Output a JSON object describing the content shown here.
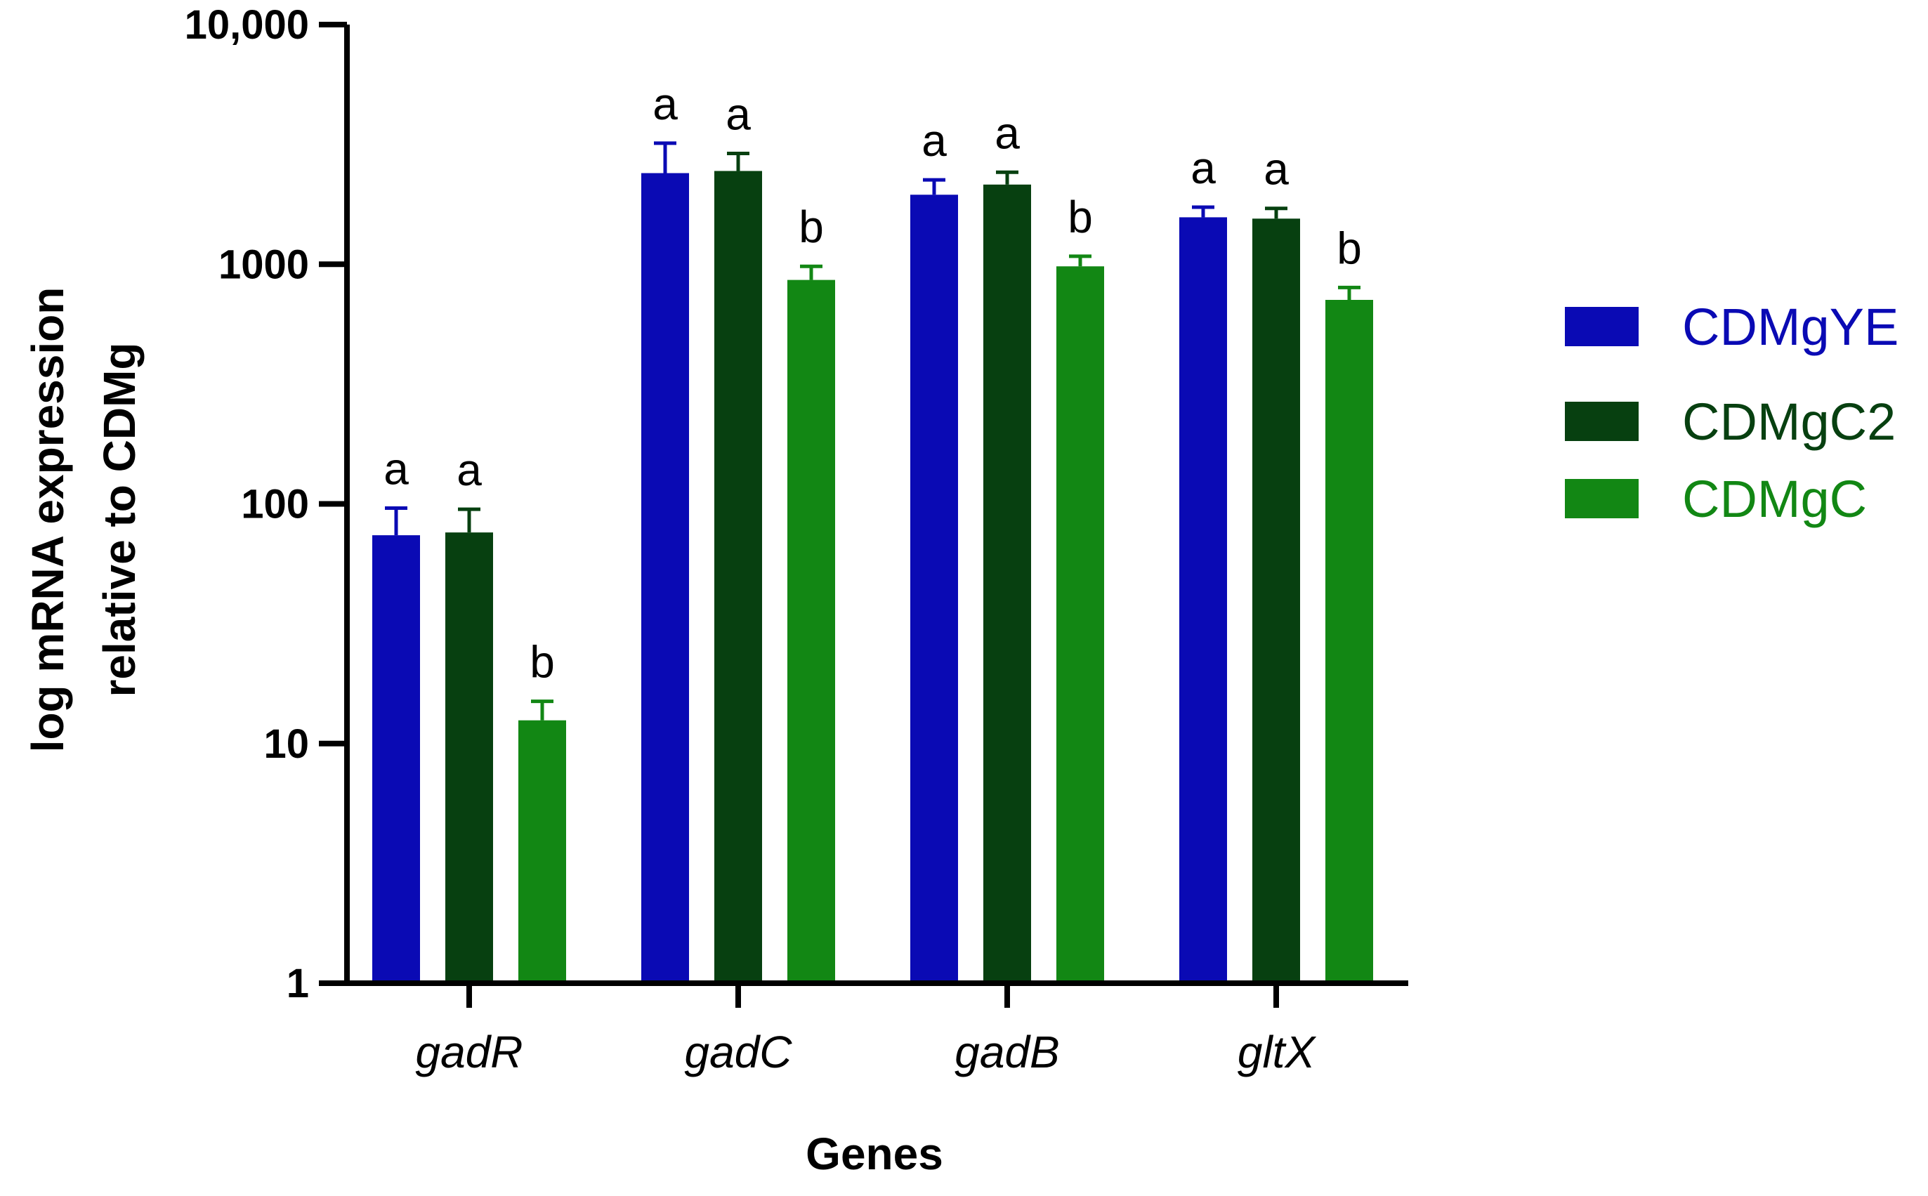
{
  "chart_data": {
    "type": "bar",
    "title": "",
    "xlabel": "Genes",
    "ylabel_lines": [
      "log mRNA expression",
      "relative to CDMg"
    ],
    "yscale": "log",
    "ylim": [
      1,
      10000
    ],
    "ytick_values": [
      1,
      10,
      100,
      1000,
      10000
    ],
    "ytick_labels": [
      "1",
      "10",
      "100",
      "1000",
      "10,000"
    ],
    "categories": [
      "gadR",
      "gadC",
      "gadB",
      "gltX"
    ],
    "series": [
      {
        "name": "CDMgYE",
        "color": "#0a0ab4",
        "values": [
          74,
          2400,
          1950,
          1570
        ],
        "errors": [
          22,
          800,
          300,
          160
        ],
        "labels": [
          "a",
          "a",
          "a",
          "a"
        ]
      },
      {
        "name": "CDMgC2",
        "color": "#074010",
        "values": [
          76,
          2450,
          2150,
          1550
        ],
        "errors": [
          19,
          450,
          270,
          160
        ],
        "labels": [
          "a",
          "a",
          "a",
          "a"
        ]
      },
      {
        "name": "CDMgC",
        "color": "#128714",
        "values": [
          12.5,
          860,
          980,
          710
        ],
        "errors": [
          2.5,
          120,
          100,
          90
        ],
        "labels": [
          "b",
          "b",
          "b",
          "b"
        ]
      }
    ],
    "legend_position": "right",
    "grid": false
  }
}
